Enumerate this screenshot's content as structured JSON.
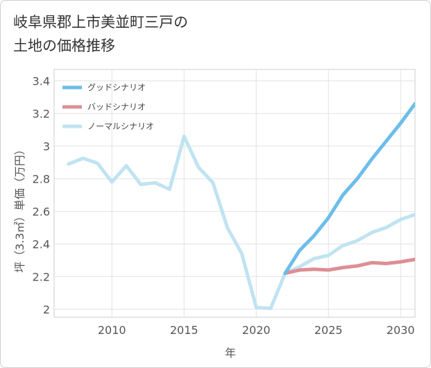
{
  "title_line1": "岐阜県郡上市美並町三戸の",
  "title_line2": "土地の価格推移",
  "chart_data": {
    "type": "line",
    "xlabel": "年",
    "ylabel": "坪（3.3㎡）単価（万円）",
    "xlim": [
      2006,
      2031
    ],
    "ylim": [
      1.95,
      3.47
    ],
    "x_ticks": [
      2010,
      2015,
      2020,
      2025,
      2030
    ],
    "y_ticks": [
      2,
      2.2,
      2.4,
      2.6,
      2.8,
      3,
      3.2,
      3.4
    ],
    "y_tick_labels": [
      "2",
      "2.2",
      "2.4",
      "2.6",
      "2.8",
      "3",
      "3.2",
      "3.4"
    ],
    "grid": true,
    "legend_position": "top-left",
    "series": [
      {
        "name": "グッドシナリオ",
        "color": "#6cbdea",
        "x": [
          2022,
          2023,
          2024,
          2025,
          2026,
          2027,
          2028,
          2029,
          2030,
          2031
        ],
        "y": [
          2.22,
          2.36,
          2.45,
          2.56,
          2.7,
          2.8,
          2.92,
          3.03,
          3.14,
          3.26
        ]
      },
      {
        "name": "バッドシナリオ",
        "color": "#dd8e94",
        "x": [
          2022,
          2023,
          2024,
          2025,
          2026,
          2027,
          2028,
          2029,
          2030,
          2031
        ],
        "y": [
          2.22,
          2.24,
          2.245,
          2.24,
          2.255,
          2.265,
          2.285,
          2.28,
          2.29,
          2.305
        ]
      },
      {
        "name": "ノーマルシナリオ",
        "color": "#c0e3f1",
        "x": [
          2007,
          2008,
          2009,
          2010,
          2011,
          2012,
          2013,
          2014,
          2015,
          2016,
          2017,
          2018,
          2019,
          2020,
          2021,
          2022,
          2023,
          2024,
          2025,
          2026,
          2027,
          2028,
          2029,
          2030,
          2031
        ],
        "y": [
          2.89,
          2.925,
          2.895,
          2.78,
          2.88,
          2.765,
          2.775,
          2.735,
          3.06,
          2.87,
          2.775,
          2.5,
          2.34,
          2.01,
          2.005,
          2.22,
          2.26,
          2.31,
          2.33,
          2.39,
          2.42,
          2.47,
          2.5,
          2.55,
          2.58
        ]
      }
    ]
  }
}
